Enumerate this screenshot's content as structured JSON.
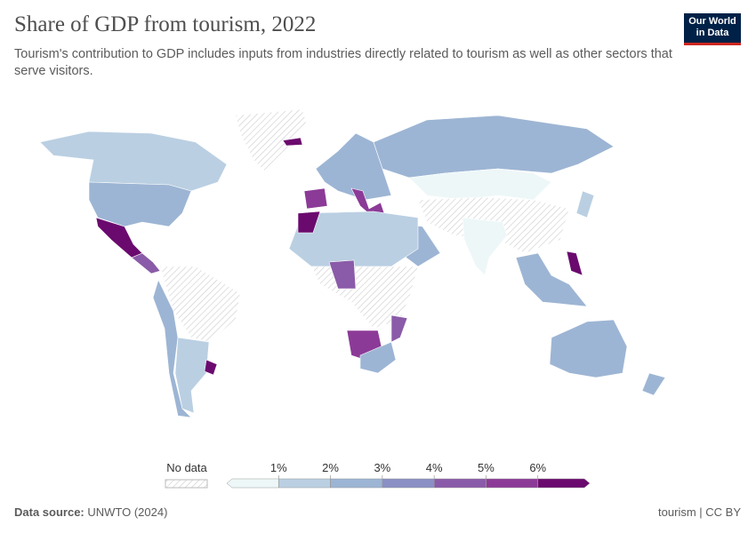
{
  "header": {
    "title": "Share of GDP from tourism, 2022",
    "subtitle": "Tourism's contribution to GDP includes inputs from industries directly related to tourism as well as other sectors that serve visitors.",
    "logo": [
      "Our World",
      "in Data"
    ]
  },
  "legend": {
    "no_data": "No data",
    "colors": [
      "#eef7f8",
      "#bacfe2",
      "#9db5d4",
      "#8a8fc4",
      "#8a5ba8",
      "#8c3a97",
      "#6b0a6e"
    ],
    "ticks": [
      {
        "value": 1,
        "label": "1%"
      },
      {
        "value": 2,
        "label": "2%"
      },
      {
        "value": 3,
        "label": "3%"
      },
      {
        "value": 4,
        "label": "4%"
      },
      {
        "value": 5,
        "label": "5%"
      },
      {
        "value": 6,
        "label": "6%"
      }
    ]
  },
  "footer": {
    "source_label": "Data source:",
    "source": "UNWTO (2024)",
    "license": "tourism | CC BY"
  }
}
